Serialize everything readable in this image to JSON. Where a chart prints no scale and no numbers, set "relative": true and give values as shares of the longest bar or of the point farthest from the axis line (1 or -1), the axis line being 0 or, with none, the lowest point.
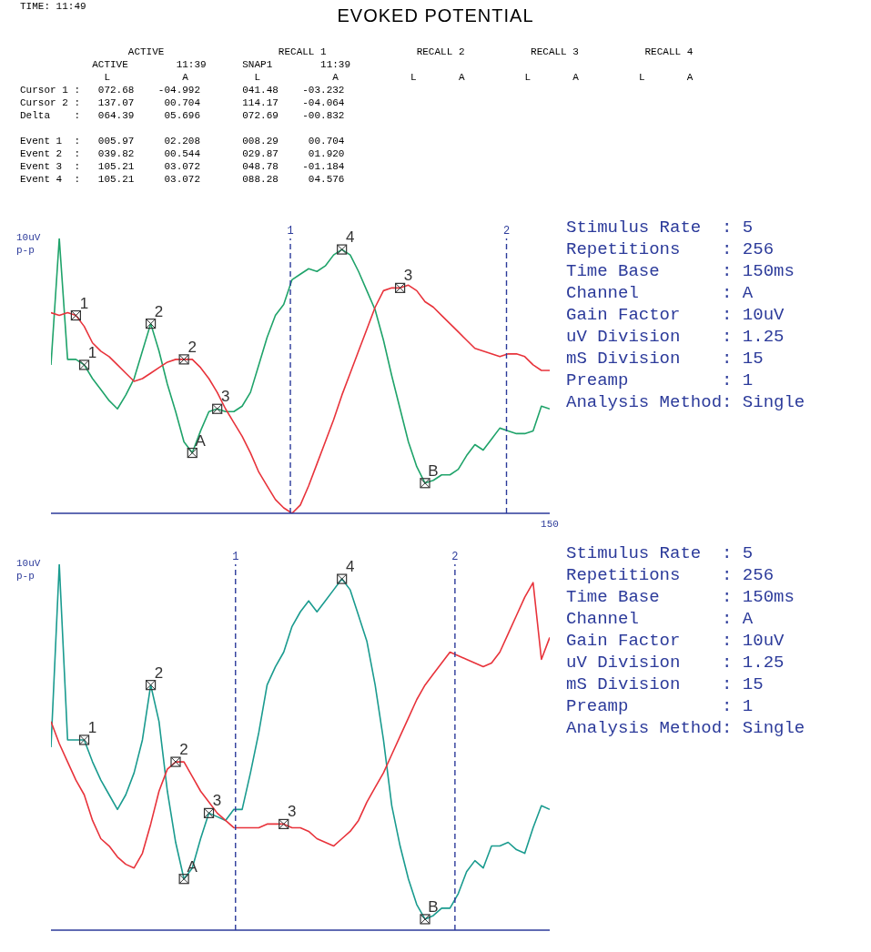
{
  "chart_data": [
    {
      "type": "other",
      "title": "EVOKED POTENTIAL",
      "annotations": [
        "TIME: 11:49",
        "                  ACTIVE                   RECALL 1               RECALL 2           RECALL 3           RECALL 4",
        "            ACTIVE        11:39      SNAP1        11:39",
        "              L            A           L            A            L       A          L       A          L       A",
        "Cursor 1 :   072.68    -04.992       041.48    -03.232",
        "Cursor 2 :   137.07     00.704       114.17    -04.064",
        "Delta    :   064.39     05.696       072.69    -00.832",
        "Event 1  :   005.97     02.208       008.29     00.704",
        "Event 2  :   039.82     00.544       029.87     01.920",
        "Event 3  :   105.21     03.072       048.78    -01.184",
        "Event 4  :   105.21     03.072       088.28     04.576"
      ]
    },
    {
      "type": "line",
      "relative": true,
      "ylabel": "10uV p-p",
      "grid": false,
      "legend": false,
      "marker": "none",
      "line_style": "solid",
      "categories": [
        null,
        null,
        null,
        null,
        null,
        null,
        null,
        null,
        null,
        null,
        null,
        null,
        null,
        null,
        null,
        null,
        null,
        null,
        null,
        null,
        null,
        null,
        null,
        null,
        null,
        null,
        null,
        null,
        null,
        null,
        null,
        null,
        null,
        null,
        null,
        null,
        null,
        null,
        null,
        null,
        null,
        null,
        null,
        null,
        null,
        null,
        null,
        null,
        null,
        null,
        null,
        null,
        null,
        null,
        null,
        null,
        null,
        null,
        null,
        null,
        null
      ],
      "series": [
        {
          "color": "#1fa36a",
          "values": [
            0.54,
            1.0,
            0.56,
            0.56,
            0.54,
            0.49,
            0.45,
            0.41,
            0.38,
            0.43,
            0.49,
            0.59,
            0.69,
            0.59,
            0.47,
            0.37,
            0.26,
            0.22,
            0.3,
            0.37,
            0.38,
            0.37,
            0.37,
            0.39,
            0.44,
            0.54,
            0.64,
            0.72,
            0.76,
            0.85,
            0.87,
            0.89,
            0.88,
            0.9,
            0.94,
            0.96,
            0.94,
            0.88,
            0.81,
            0.74,
            0.63,
            0.5,
            0.38,
            0.26,
            0.17,
            0.11,
            0.12,
            0.14,
            0.14,
            0.16,
            0.21,
            0.25,
            0.23,
            0.27,
            0.31,
            0.3,
            0.29,
            0.29,
            0.3,
            0.39,
            0.38
          ]
        },
        {
          "color": "#e8333b",
          "values": [
            0.73,
            0.72,
            0.73,
            0.72,
            0.68,
            0.62,
            0.59,
            0.57,
            0.54,
            0.51,
            0.48,
            0.49,
            0.51,
            0.53,
            0.55,
            0.56,
            0.56,
            0.56,
            0.53,
            0.49,
            0.44,
            0.38,
            0.33,
            0.28,
            0.22,
            0.15,
            0.1,
            0.05,
            0.02,
            0.0,
            0.03,
            0.1,
            0.18,
            0.26,
            0.34,
            0.43,
            0.51,
            0.59,
            0.67,
            0.75,
            0.81,
            0.82,
            0.82,
            0.83,
            0.81,
            0.77,
            0.75,
            0.72,
            0.69,
            0.66,
            0.63,
            0.6,
            0.59,
            0.58,
            0.57,
            0.58,
            0.58,
            0.57,
            0.54,
            0.52,
            0.52
          ]
        }
      ],
      "annotations": [
        "Stimulus Rate  : 5",
        "Repetitions    : 256",
        "Time Base      : 150ms",
        "Channel        : A",
        "Gain Factor    : 10uV",
        "uV Division    : 1.25",
        "mS Division    : 15",
        "Preamp         : 1",
        "Analysis Method: Single",
        "1",
        "2",
        "A",
        "3",
        "4",
        "B",
        "1",
        "2",
        "3",
        "1",
        "2",
        "150"
      ]
    },
    {
      "type": "line",
      "relative": true,
      "ylabel": "10uV p-p",
      "grid": false,
      "legend": false,
      "marker": "none",
      "line_style": "solid",
      "categories": [
        null,
        null,
        null,
        null,
        null,
        null,
        null,
        null,
        null,
        null,
        null,
        null,
        null,
        null,
        null,
        null,
        null,
        null,
        null,
        null,
        null,
        null,
        null,
        null,
        null,
        null,
        null,
        null,
        null,
        null,
        null,
        null,
        null,
        null,
        null,
        null,
        null,
        null,
        null,
        null,
        null,
        null,
        null,
        null,
        null,
        null,
        null,
        null,
        null,
        null,
        null,
        null,
        null,
        null,
        null,
        null,
        null,
        null,
        null,
        null,
        null
      ],
      "series": [
        {
          "color": "#1a9b8f",
          "values": [
            0.5,
            1.0,
            0.52,
            0.52,
            0.52,
            0.46,
            0.41,
            0.37,
            0.33,
            0.37,
            0.43,
            0.52,
            0.67,
            0.57,
            0.38,
            0.24,
            0.14,
            0.17,
            0.25,
            0.32,
            0.31,
            0.3,
            0.33,
            0.33,
            0.43,
            0.54,
            0.67,
            0.72,
            0.76,
            0.83,
            0.87,
            0.9,
            0.87,
            0.9,
            0.93,
            0.96,
            0.93,
            0.86,
            0.79,
            0.67,
            0.52,
            0.34,
            0.23,
            0.14,
            0.07,
            0.03,
            0.04,
            0.06,
            0.06,
            0.1,
            0.16,
            0.19,
            0.17,
            0.23,
            0.23,
            0.24,
            0.22,
            0.21,
            0.28,
            0.34,
            0.33
          ]
        },
        {
          "color": "#e8333b",
          "values": [
            0.57,
            0.51,
            0.46,
            0.41,
            0.37,
            0.3,
            0.25,
            0.23,
            0.2,
            0.18,
            0.17,
            0.21,
            0.29,
            0.38,
            0.44,
            0.46,
            0.46,
            0.42,
            0.38,
            0.35,
            0.32,
            0.3,
            0.28,
            0.28,
            0.28,
            0.28,
            0.29,
            0.29,
            0.29,
            0.28,
            0.28,
            0.27,
            0.25,
            0.24,
            0.23,
            0.25,
            0.27,
            0.3,
            0.35,
            0.39,
            0.43,
            0.48,
            0.53,
            0.58,
            0.63,
            0.67,
            0.7,
            0.73,
            0.76,
            0.75,
            0.74,
            0.73,
            0.72,
            0.73,
            0.76,
            0.81,
            0.86,
            0.91,
            0.95,
            0.74,
            0.8
          ]
        }
      ],
      "annotations": [
        "Stimulus Rate  : 5",
        "Repetitions    : 256",
        "Time Base      : 150ms",
        "Channel        : A",
        "Gain Factor    : 10uV",
        "uV Division    : 1.25",
        "mS Division    : 15",
        "Preamp         : 1",
        "Analysis Method: Single",
        "1",
        "2",
        "A",
        "3",
        "4",
        "B",
        "2",
        "3",
        "1",
        "2"
      ]
    }
  ]
}
